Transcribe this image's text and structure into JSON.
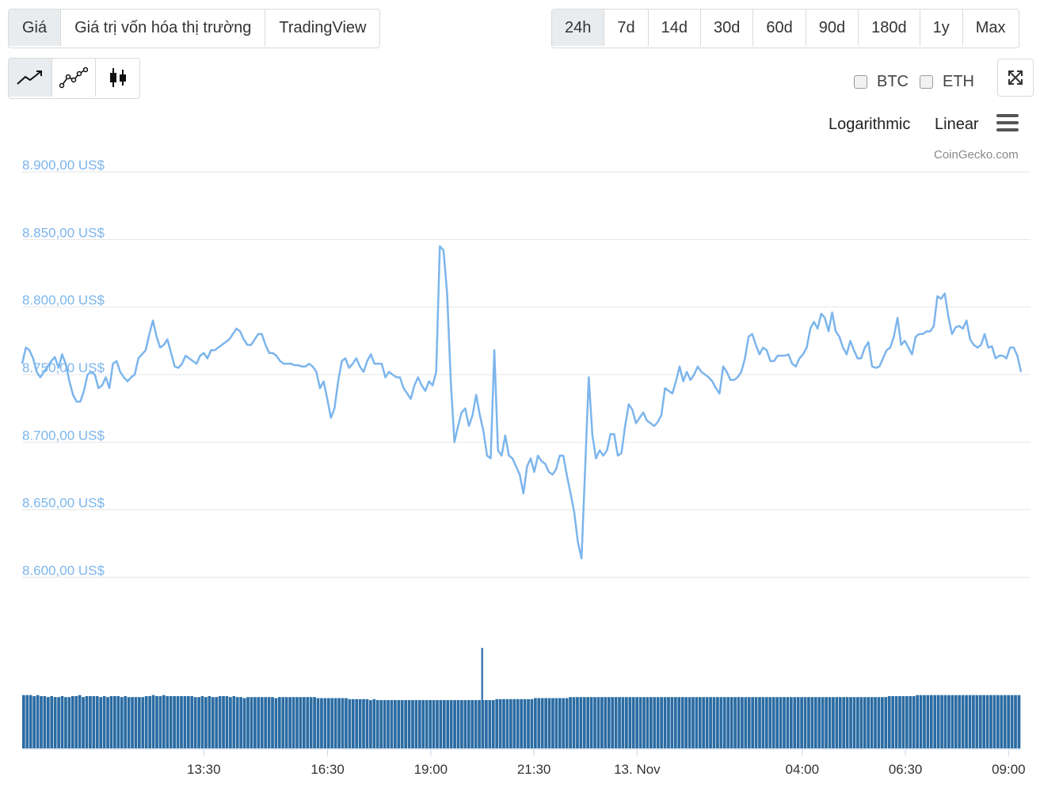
{
  "tabs": [
    {
      "label": "Giá",
      "active": true
    },
    {
      "label": "Giá trị vốn hóa thị trường",
      "active": false
    },
    {
      "label": "TradingView",
      "active": false
    }
  ],
  "ranges": [
    {
      "label": "24h",
      "active": true
    },
    {
      "label": "7d",
      "active": false
    },
    {
      "label": "14d",
      "active": false
    },
    {
      "label": "30d",
      "active": false
    },
    {
      "label": "60d",
      "active": false
    },
    {
      "label": "90d",
      "active": false
    },
    {
      "label": "180d",
      "active": false
    },
    {
      "label": "1y",
      "active": false
    },
    {
      "label": "Max",
      "active": false
    }
  ],
  "chart_types": [
    {
      "icon": "line-chart-icon",
      "active": true
    },
    {
      "icon": "line-markers-chart-icon",
      "active": false
    },
    {
      "icon": "candlestick-chart-icon",
      "active": false
    }
  ],
  "compare": {
    "btc_label": "BTC",
    "eth_label": "ETH",
    "btc_checked": false,
    "eth_checked": false
  },
  "scale_options": {
    "log_label": "Logarithmic",
    "linear_label": "Linear",
    "selected": "Linear"
  },
  "fullscreen_icon": "expand-icon",
  "menu_icon": "hamburger-menu-icon",
  "credit": "CoinGecko.com",
  "colors": {
    "line": "#7cb5ec",
    "volume": "#2b6ca3",
    "grid": "#e6e6e6",
    "axis_label": "#7cb5ec"
  },
  "chart_data": {
    "type": "line",
    "title": "",
    "xlabel": "",
    "ylabel": "",
    "ylim": [
      8600,
      8900
    ],
    "yticks": [
      8900,
      8850,
      8800,
      8750,
      8700,
      8650,
      8600
    ],
    "ytick_labels": [
      "8.900,00 US$",
      "8.850,00 US$",
      "8.800,00 US$",
      "8.750,00 US$",
      "8.700,00 US$",
      "8.650,00 US$",
      "8.600,00 US$"
    ],
    "xtick_labels": [
      "13:30",
      "16:30",
      "19:00",
      "21:30",
      "13. Nov",
      "04:00",
      "06:30",
      "09:00"
    ],
    "xticks_hours": [
      13.5,
      16.5,
      19.0,
      21.5,
      24.0,
      28.0,
      30.5,
      33.0
    ],
    "x_start_hour": 9.1,
    "x_end_hour": 33.3,
    "grid": true,
    "legend": "none",
    "series": [
      {
        "values": [
          8758,
          8770,
          8768,
          8762,
          8752,
          8748,
          8752,
          8756,
          8760,
          8763,
          8755,
          8765,
          8758,
          8745,
          8735,
          8730,
          8730,
          8738,
          8750,
          8752,
          8750,
          8740,
          8742,
          8748,
          8740,
          8758,
          8760,
          8752,
          8748,
          8745,
          8748,
          8750,
          8762,
          8765,
          8768,
          8780,
          8790,
          8778,
          8770,
          8772,
          8776,
          8766,
          8756,
          8755,
          8758,
          8764,
          8762,
          8760,
          8758,
          8764,
          8766,
          8762,
          8768,
          8768,
          8770,
          8772,
          8774,
          8776,
          8780,
          8784,
          8782,
          8776,
          8772,
          8772,
          8776,
          8780,
          8780,
          8772,
          8766,
          8766,
          8764,
          8760,
          8758,
          8758,
          8758,
          8757,
          8757,
          8756,
          8756,
          8758,
          8756,
          8752,
          8740,
          8745,
          8732,
          8718,
          8725,
          8745,
          8760,
          8762,
          8755,
          8758,
          8762,
          8756,
          8752,
          8760,
          8765,
          8758,
          8758,
          8758,
          8748,
          8752,
          8750,
          8748,
          8748,
          8740,
          8736,
          8732,
          8742,
          8748,
          8742,
          8738,
          8745,
          8742,
          8752,
          8845,
          8842,
          8810,
          8745,
          8700,
          8712,
          8722,
          8725,
          8712,
          8720,
          8735,
          8720,
          8708,
          8690,
          8688,
          8768,
          8694,
          8690,
          8705,
          8690,
          8688,
          8682,
          8676,
          8662,
          8682,
          8688,
          8678,
          8690,
          8686,
          8684,
          8678,
          8676,
          8680,
          8690,
          8690,
          8675,
          8662,
          8648,
          8626,
          8614,
          8680,
          8748,
          8705,
          8688,
          8694,
          8690,
          8694,
          8706,
          8706,
          8690,
          8692,
          8712,
          8728,
          8724,
          8714,
          8718,
          8722,
          8716,
          8714,
          8712,
          8715,
          8720,
          8740,
          8738,
          8736,
          8745,
          8756,
          8745,
          8752,
          8746,
          8750,
          8756,
          8752,
          8750,
          8748,
          8745,
          8740,
          8736,
          8756,
          8752,
          8746,
          8746,
          8748,
          8752,
          8762,
          8778,
          8780,
          8772,
          8765,
          8770,
          8768,
          8760,
          8760,
          8764,
          8764,
          8764,
          8765,
          8758,
          8756,
          8762,
          8765,
          8770,
          8784,
          8789,
          8784,
          8795,
          8792,
          8782,
          8796,
          8782,
          8778,
          8770,
          8765,
          8775,
          8768,
          8762,
          8762,
          8770,
          8774,
          8756,
          8755,
          8756,
          8762,
          8768,
          8770,
          8778,
          8792,
          8772,
          8775,
          8770,
          8765,
          8778,
          8780,
          8780,
          8782,
          8782,
          8786,
          8808,
          8806,
          8810,
          8793,
          8780,
          8785,
          8786,
          8784,
          8790,
          8776,
          8772,
          8770,
          8772,
          8780,
          8770,
          8771,
          8762,
          8764,
          8764,
          8762,
          8770,
          8770,
          8764,
          8752
        ]
      }
    ],
    "volume": {
      "baseline": 100,
      "values": [
        53,
        53,
        53,
        52,
        53,
        52,
        52,
        51,
        52,
        51,
        51,
        52,
        51,
        51,
        52,
        52,
        53,
        51,
        52,
        52,
        52,
        52,
        51,
        52,
        51,
        52,
        52,
        52,
        51,
        52,
        51,
        51,
        51,
        51,
        51,
        52,
        52,
        53,
        52,
        52,
        53,
        52,
        52,
        52,
        52,
        52,
        52,
        52,
        52,
        51,
        51,
        52,
        51,
        52,
        51,
        51,
        52,
        52,
        52,
        51,
        52,
        51,
        51,
        50,
        51,
        51,
        51,
        51,
        51,
        51,
        51,
        51,
        50,
        51,
        51,
        51,
        51,
        51,
        51,
        51,
        51,
        51,
        51,
        51,
        50,
        50,
        50,
        50,
        50,
        50,
        50,
        50,
        50,
        49,
        49,
        49,
        49,
        49,
        49,
        48,
        49,
        48,
        48,
        48,
        48,
        48,
        48,
        48,
        48,
        48,
        48,
        48,
        48,
        48,
        48,
        48,
        48,
        48,
        48,
        48,
        48,
        48,
        48,
        48,
        48,
        48,
        48,
        48,
        48,
        48,
        48,
        48,
        48,
        48,
        48,
        49,
        49,
        49,
        49,
        49,
        49,
        49,
        49,
        49,
        49,
        49,
        50,
        50,
        50,
        50,
        50,
        50,
        50,
        50,
        50,
        50,
        51,
        51,
        51,
        51,
        51,
        51,
        51,
        51,
        51,
        51,
        51,
        51,
        51,
        51,
        51,
        51,
        51,
        51,
        51,
        51,
        51,
        51,
        51,
        51,
        51,
        51,
        51,
        51,
        51,
        51,
        51,
        51,
        51,
        51,
        51,
        51,
        51,
        51,
        51,
        51,
        51,
        51,
        51,
        51,
        51,
        51,
        51,
        51,
        51,
        51,
        51,
        51,
        51,
        51,
        51,
        51,
        51,
        51,
        51,
        51,
        51,
        51,
        51,
        51,
        51,
        51,
        51,
        51,
        51,
        51,
        51,
        51,
        51,
        51,
        51,
        51,
        51,
        51,
        51,
        51,
        51,
        51,
        51,
        51,
        51,
        51,
        51,
        51,
        51,
        51,
        51,
        52,
        52,
        52,
        52,
        52,
        52,
        52,
        52,
        53,
        53,
        53,
        53,
        53,
        53,
        53,
        53,
        53,
        53,
        53,
        53,
        53,
        53,
        53,
        53,
        53,
        53,
        53,
        53,
        53,
        53,
        53,
        53,
        53,
        53,
        53,
        53,
        53,
        53
      ],
      "spike_index": 131,
      "spike_value": 100
    }
  }
}
